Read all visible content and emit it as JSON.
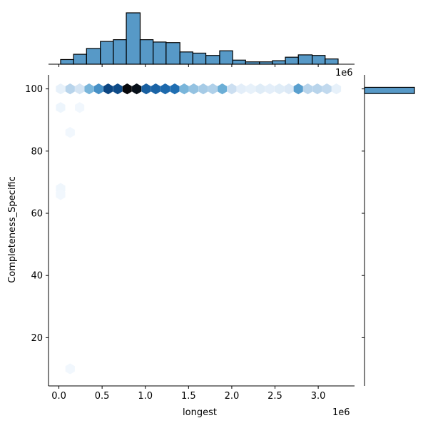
{
  "chart_data": {
    "type": "hexbin-joint",
    "xlabel": "longest",
    "ylabel": "Completeness_Specific",
    "x_offset_label": "1e6",
    "top_offset_label": "1e6",
    "xlim": [
      -0.12,
      3.42
    ],
    "ylim": [
      4.5,
      104.5
    ],
    "x_ticks": [
      0.0,
      0.5,
      1.0,
      1.5,
      2.0,
      2.5,
      3.0
    ],
    "x_tick_labels": [
      "0.0",
      "0.5",
      "1.0",
      "1.5",
      "2.0",
      "2.5",
      "3.0"
    ],
    "y_ticks": [
      20,
      40,
      60,
      80,
      100
    ],
    "y_tick_labels": [
      "20",
      "40",
      "60",
      "80",
      "100"
    ],
    "colormap_low": "#f7fbff",
    "colormap_high": "#08090c",
    "hexbins": [
      {
        "x": 0.02,
        "y": 100,
        "d": 0.08
      },
      {
        "x": 0.13,
        "y": 100,
        "d": 0.28
      },
      {
        "x": 0.24,
        "y": 100,
        "d": 0.18
      },
      {
        "x": 0.35,
        "y": 100,
        "d": 0.42
      },
      {
        "x": 0.46,
        "y": 100,
        "d": 0.55
      },
      {
        "x": 0.57,
        "y": 100,
        "d": 0.82
      },
      {
        "x": 0.68,
        "y": 100,
        "d": 0.8
      },
      {
        "x": 0.79,
        "y": 100,
        "d": 1.0
      },
      {
        "x": 0.9,
        "y": 100,
        "d": 0.98
      },
      {
        "x": 1.01,
        "y": 100,
        "d": 0.72
      },
      {
        "x": 1.12,
        "y": 100,
        "d": 0.7
      },
      {
        "x": 1.23,
        "y": 100,
        "d": 0.68
      },
      {
        "x": 1.34,
        "y": 100,
        "d": 0.66
      },
      {
        "x": 1.45,
        "y": 100,
        "d": 0.42
      },
      {
        "x": 1.56,
        "y": 100,
        "d": 0.36
      },
      {
        "x": 1.67,
        "y": 100,
        "d": 0.32
      },
      {
        "x": 1.78,
        "y": 100,
        "d": 0.3
      },
      {
        "x": 1.89,
        "y": 100,
        "d": 0.45
      },
      {
        "x": 2.0,
        "y": 100,
        "d": 0.22
      },
      {
        "x": 2.11,
        "y": 100,
        "d": 0.1
      },
      {
        "x": 2.22,
        "y": 100,
        "d": 0.08
      },
      {
        "x": 2.33,
        "y": 100,
        "d": 0.12
      },
      {
        "x": 2.44,
        "y": 100,
        "d": 0.1
      },
      {
        "x": 2.55,
        "y": 100,
        "d": 0.12
      },
      {
        "x": 2.66,
        "y": 100,
        "d": 0.14
      },
      {
        "x": 2.77,
        "y": 100,
        "d": 0.5
      },
      {
        "x": 2.88,
        "y": 100,
        "d": 0.28
      },
      {
        "x": 2.99,
        "y": 100,
        "d": 0.28
      },
      {
        "x": 3.1,
        "y": 100,
        "d": 0.26
      },
      {
        "x": 3.21,
        "y": 100,
        "d": 0.08
      },
      {
        "x": 0.02,
        "y": 94,
        "d": 0.05
      },
      {
        "x": 0.24,
        "y": 94,
        "d": 0.03
      },
      {
        "x": 0.13,
        "y": 86,
        "d": 0.03
      },
      {
        "x": 0.02,
        "y": 68,
        "d": 0.04
      },
      {
        "x": 0.02,
        "y": 66,
        "d": 0.03
      },
      {
        "x": 0.13,
        "y": 10,
        "d": 0.03
      }
    ],
    "x_hist": {
      "bin_edges": [
        0.02,
        0.17,
        0.32,
        0.48,
        0.63,
        0.78,
        0.94,
        1.09,
        1.24,
        1.4,
        1.55,
        1.7,
        1.86,
        2.01,
        2.16,
        2.32,
        2.47,
        2.62,
        2.77,
        2.93,
        3.08,
        3.23
      ],
      "counts": [
        8,
        17,
        27,
        39,
        42,
        88,
        42,
        38,
        37,
        21,
        19,
        15,
        23,
        7,
        4,
        4,
        6,
        12,
        16,
        15,
        9
      ]
    },
    "y_hist": {
      "bin_range": [
        98.5,
        100.5
      ],
      "count": 350
    }
  }
}
